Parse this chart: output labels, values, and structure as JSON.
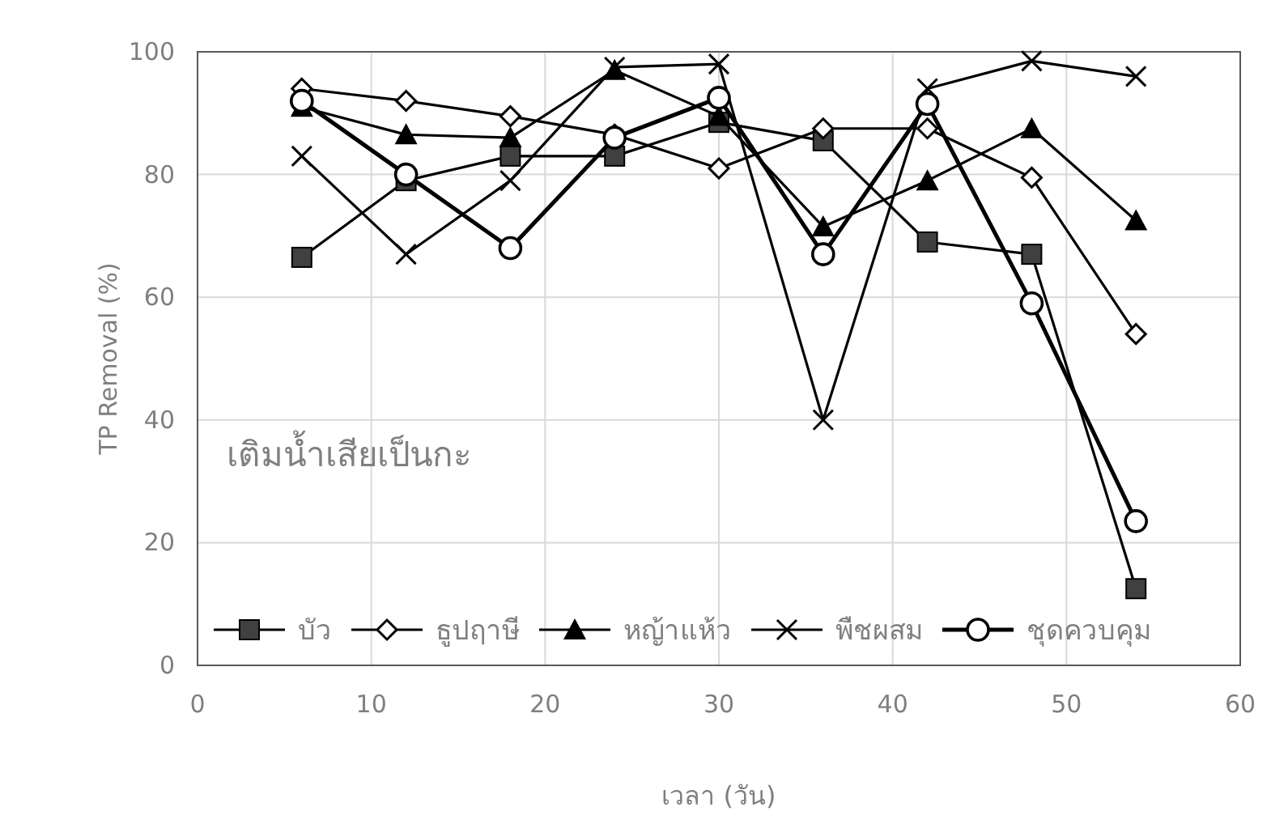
{
  "chart_data": {
    "type": "line",
    "xlabel": "เวลา (วัน)",
    "ylabel": "TP Removal (%)",
    "annotations": [
      "เติมน้ำเสียเป็นกะ"
    ],
    "x": [
      6,
      12,
      18,
      24,
      30,
      36,
      42,
      48,
      54
    ],
    "xlim": [
      0,
      60
    ],
    "xticks": [
      0,
      10,
      20,
      30,
      40,
      50,
      60
    ],
    "ylim": [
      0,
      100
    ],
    "yticks": [
      0,
      20,
      40,
      60,
      80,
      100
    ],
    "grid": true,
    "legend": "bottom",
    "line_style": "solid",
    "series": [
      {
        "name": "บัว",
        "color": "#000000",
        "marker": "square",
        "values": [
          66.5,
          79,
          83,
          83,
          88.5,
          85.5,
          69,
          67,
          12.5
        ]
      },
      {
        "name": "ธูปฤาษี",
        "color": "#000000",
        "marker": "diamond",
        "values": [
          94,
          92,
          89.5,
          86.5,
          81,
          87.5,
          87.5,
          79.5,
          54
        ]
      },
      {
        "name": "หญ้าแห้ว",
        "color": "#000000",
        "marker": "triangle",
        "values": [
          91,
          86.5,
          86,
          97,
          89.5,
          71.5,
          79,
          87.5,
          72.5
        ]
      },
      {
        "name": "พืชผสม",
        "color": "#000000",
        "marker": "cross",
        "values": [
          83,
          67,
          79,
          97.5,
          98,
          40,
          94,
          98.5,
          96
        ]
      },
      {
        "name": "ชุดควบคุม",
        "color": "#000000",
        "marker": "circle",
        "values": [
          92,
          80,
          68,
          86,
          92.5,
          67,
          91.5,
          59,
          23.5
        ]
      }
    ]
  }
}
